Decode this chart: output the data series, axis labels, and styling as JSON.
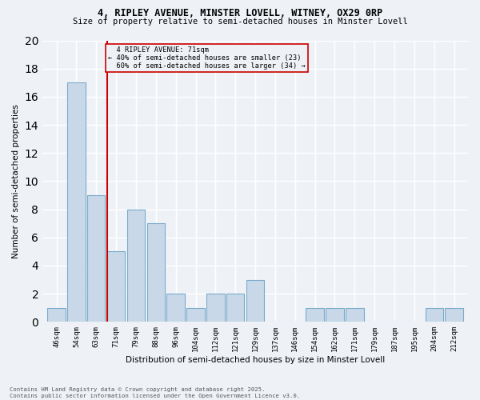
{
  "title1": "4, RIPLEY AVENUE, MINSTER LOVELL, WITNEY, OX29 0RP",
  "title2": "Size of property relative to semi-detached houses in Minster Lovell",
  "xlabel": "Distribution of semi-detached houses by size in Minster Lovell",
  "ylabel": "Number of semi-detached properties",
  "footer1": "Contains HM Land Registry data © Crown copyright and database right 2025.",
  "footer2": "Contains public sector information licensed under the Open Government Licence v3.0.",
  "categories": [
    "46sqm",
    "54sqm",
    "63sqm",
    "71sqm",
    "79sqm",
    "88sqm",
    "96sqm",
    "104sqm",
    "112sqm",
    "121sqm",
    "129sqm",
    "137sqm",
    "146sqm",
    "154sqm",
    "162sqm",
    "171sqm",
    "179sqm",
    "187sqm",
    "195sqm",
    "204sqm",
    "212sqm"
  ],
  "values": [
    1,
    17,
    9,
    5,
    8,
    7,
    2,
    1,
    2,
    2,
    3,
    0,
    0,
    1,
    1,
    1,
    0,
    0,
    0,
    1,
    1
  ],
  "bar_color": "#c8d8e8",
  "bar_edge_color": "#7aaacb",
  "subject_label": "4 RIPLEY AVENUE: 71sqm",
  "pct_smaller": 40,
  "n_smaller": 23,
  "pct_larger": 60,
  "n_larger": 34,
  "annotation_box_color": "#cc0000",
  "ylim": [
    0,
    20
  ],
  "yticks": [
    0,
    2,
    4,
    6,
    8,
    10,
    12,
    14,
    16,
    18,
    20
  ],
  "bg_color": "#eef2f7",
  "grid_color": "#ffffff"
}
